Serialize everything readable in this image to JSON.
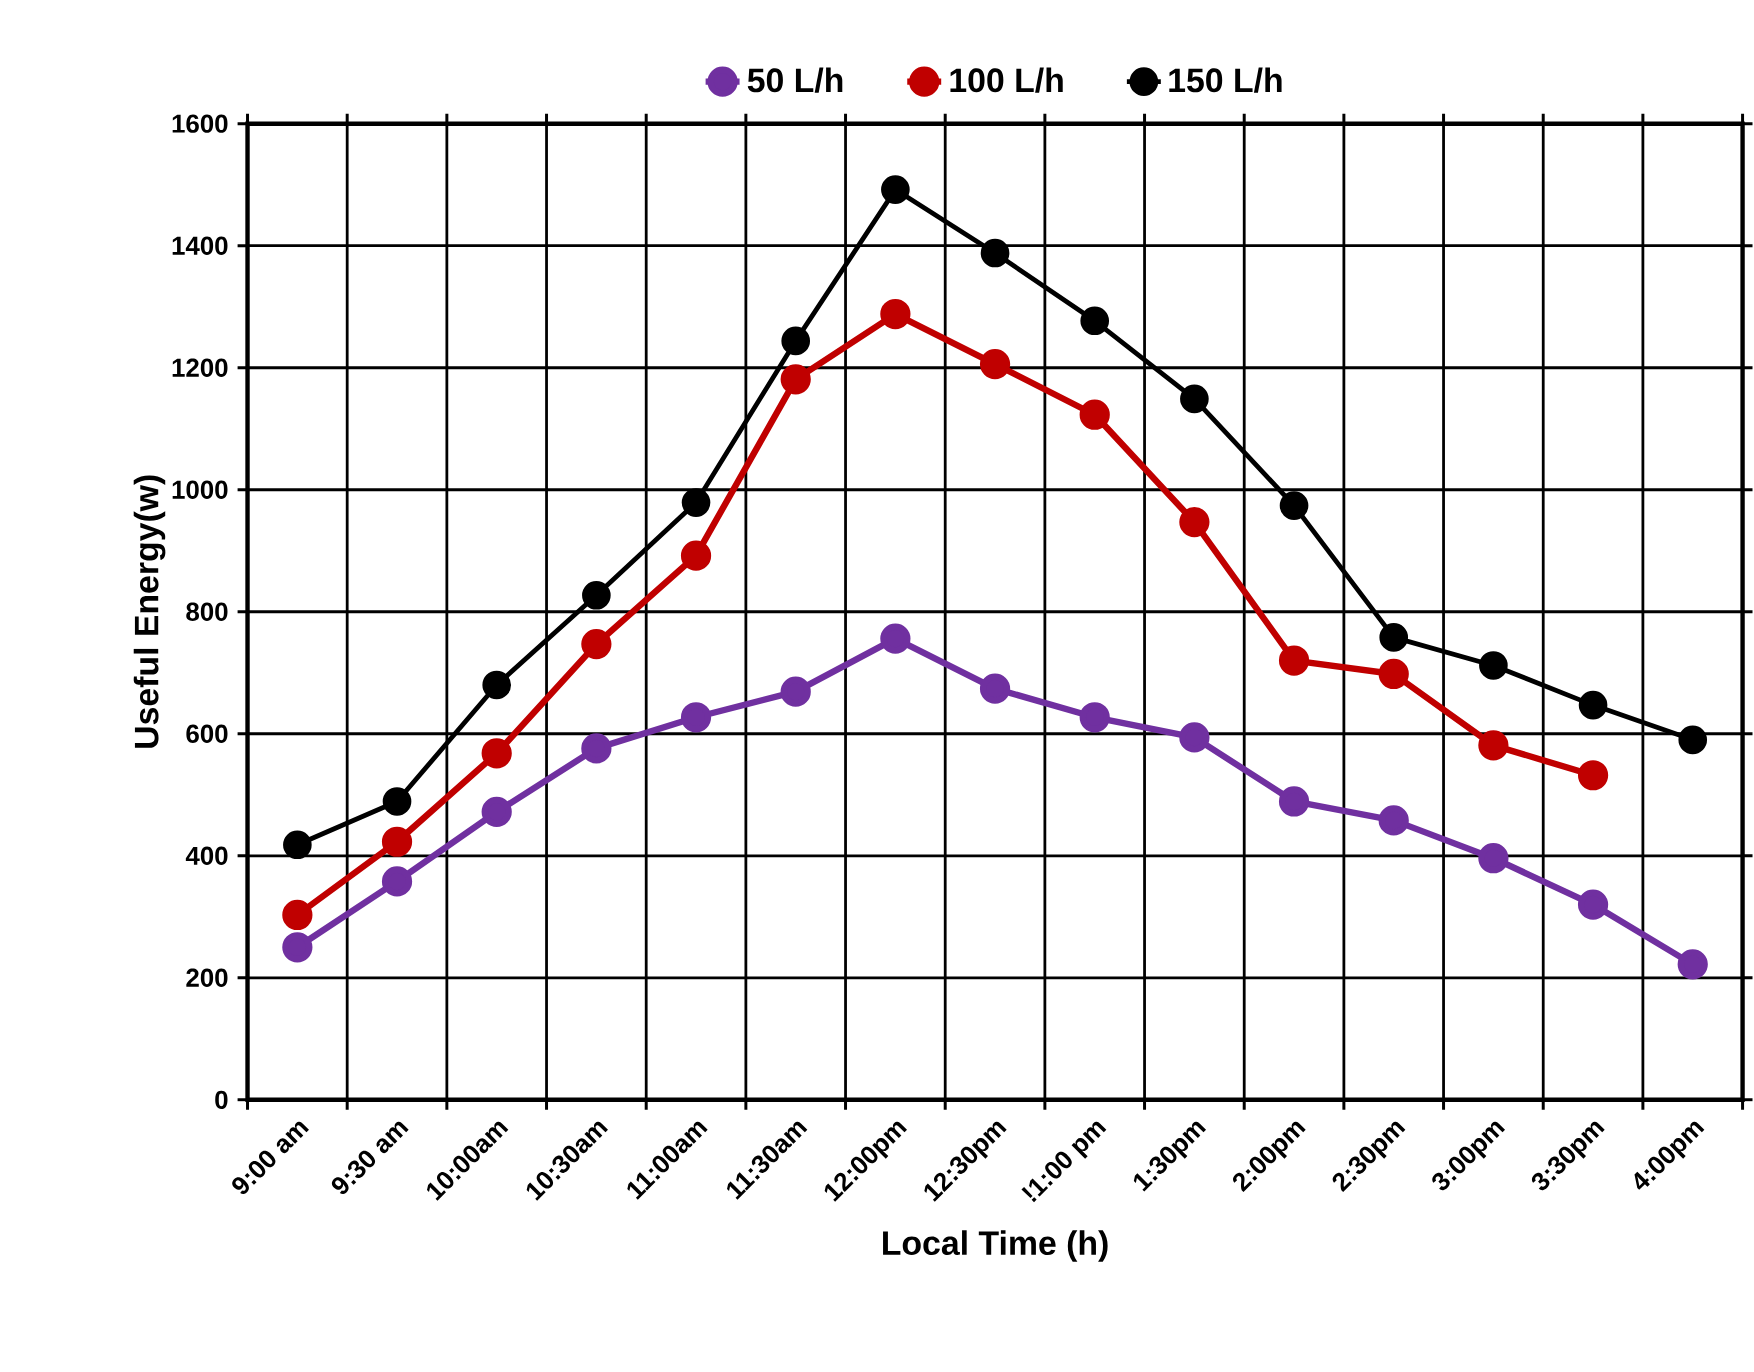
{
  "chart_data": {
    "type": "line",
    "xlabel": "Local Time (h)",
    "ylabel": "Useful Energy(w)",
    "categories": [
      "9:00 am",
      "9:30 am",
      "10:00am",
      "10:30am",
      "11:00am",
      "11:30am",
      "12:00pm",
      "12:30pm",
      "!1:00 pm",
      "1:30pm",
      "2:00pm",
      "2:30pm",
      "3:00pm",
      "3:30pm",
      "4:00pm"
    ],
    "series": [
      {
        "name": "50 L/h",
        "color": "#7030a0",
        "values": [
          250,
          358,
          472,
          576,
          627,
          669,
          756,
          674,
          627,
          594,
          489,
          458,
          396,
          320,
          222
        ]
      },
      {
        "name": "100 L/h",
        "color": "#c00000",
        "values": [
          303,
          423,
          568,
          747,
          892,
          1181,
          1288,
          1206,
          1123,
          947,
          720,
          698,
          581,
          532,
          null
        ]
      },
      {
        "name": "150 L/h",
        "color": "#000000",
        "values": [
          418,
          489,
          680,
          827,
          979,
          1244,
          1492,
          1388,
          1277,
          1149,
          974,
          758,
          712,
          647,
          590
        ]
      }
    ],
    "ylim": [
      0,
      1600
    ],
    "yticks": [
      0,
      200,
      400,
      600,
      800,
      1000,
      1200,
      1400,
      1600
    ],
    "grid": true,
    "legend": "top",
    "marker": "circle",
    "line_style": "solid"
  }
}
